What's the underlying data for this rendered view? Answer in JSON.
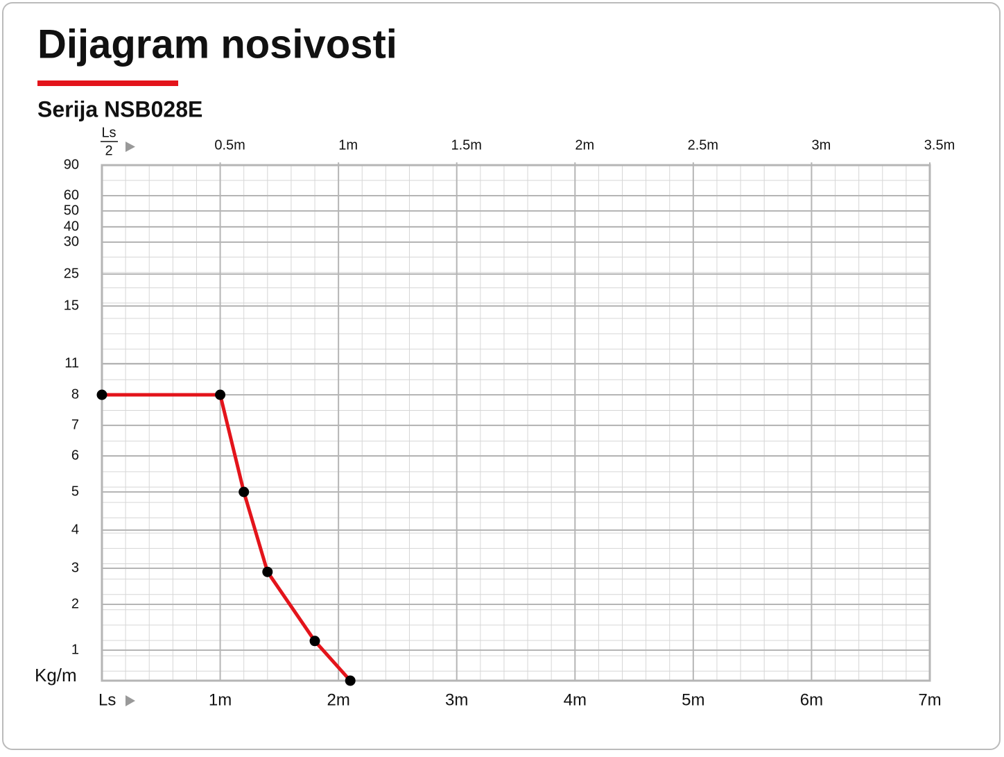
{
  "chart_data": {
    "type": "line",
    "title": "Dijagram nosivosti",
    "subtitle": "Serija NSB028E",
    "ylabel": "Kg/m",
    "xlabel": "Ls",
    "x2label_top": "Ls",
    "x2label_bottom": "2",
    "x": [
      0,
      1,
      1.2,
      1.4,
      1.8,
      2.1
    ],
    "series": [
      {
        "color": "#e3141b",
        "values": [
          8,
          8,
          5,
          2.9,
          1.2,
          0
        ]
      }
    ],
    "xlim": [
      0,
      7
    ],
    "xticks": [
      {
        "value": 1,
        "label": "1m"
      },
      {
        "value": 2,
        "label": "2m"
      },
      {
        "value": 3,
        "label": "3m"
      },
      {
        "value": 4,
        "label": "4m"
      },
      {
        "value": 5,
        "label": "5m"
      },
      {
        "value": 6,
        "label": "6m"
      },
      {
        "value": 7,
        "label": "7m"
      }
    ],
    "x2lim": [
      0,
      3.5
    ],
    "x2ticks": [
      {
        "value": 0.5,
        "label": "0.5m"
      },
      {
        "value": 1,
        "label": "1m"
      },
      {
        "value": 1.5,
        "label": "1.5m"
      },
      {
        "value": 2,
        "label": "2m"
      },
      {
        "value": 2.5,
        "label": "2.5m"
      },
      {
        "value": 3,
        "label": "3m"
      },
      {
        "value": 3.5,
        "label": "3.5m"
      }
    ],
    "ylim": [
      0,
      90
    ],
    "yticks": [
      90,
      60,
      50,
      40,
      30,
      25,
      15,
      11,
      8,
      7,
      6,
      5,
      4,
      3,
      2,
      1
    ],
    "grid": true,
    "marker_color": "#000000"
  }
}
